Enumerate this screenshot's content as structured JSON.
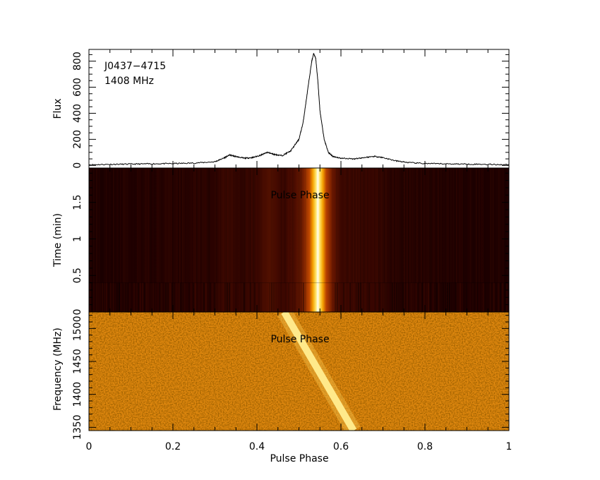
{
  "chart_data": [
    {
      "type": "line",
      "panel": "profile",
      "annotations": [
        "J0437−4715",
        "1408 MHz"
      ],
      "xlabel": "",
      "ylabel": "Flux",
      "xlim": [
        0,
        1
      ],
      "ylim": [
        -20,
        890
      ],
      "yticks": [
        "0",
        "200",
        "400",
        "600",
        "800"
      ],
      "x": [
        0.0,
        0.05,
        0.1,
        0.15,
        0.2,
        0.25,
        0.3,
        0.32,
        0.335,
        0.35,
        0.37,
        0.39,
        0.41,
        0.425,
        0.44,
        0.46,
        0.48,
        0.5,
        0.51,
        0.52,
        0.53,
        0.535,
        0.54,
        0.545,
        0.55,
        0.56,
        0.57,
        0.58,
        0.6,
        0.63,
        0.65,
        0.68,
        0.7,
        0.73,
        0.76,
        0.8,
        0.85,
        0.9,
        0.95,
        1.0
      ],
      "y": [
        5,
        8,
        10,
        12,
        14,
        18,
        28,
        55,
        80,
        68,
        55,
        60,
        80,
        100,
        85,
        75,
        110,
        200,
        330,
        560,
        790,
        860,
        820,
        650,
        420,
        200,
        100,
        70,
        55,
        50,
        58,
        70,
        60,
        35,
        22,
        14,
        12,
        10,
        8,
        5
      ]
    },
    {
      "type": "heatmap",
      "panel": "time-phase",
      "annotation": "Pulse Phase",
      "xlabel": "",
      "ylabel": "Time (min)",
      "xlim": [
        0,
        1
      ],
      "ylim": [
        0,
        1.97
      ],
      "yticks": [
        "0",
        "0.5",
        "1",
        "1.5"
      ],
      "pulse_center_phase": 0.545,
      "colormap": [
        "#1a0000",
        "#5a1000",
        "#b03b00",
        "#f08a00",
        "#ffe040",
        "#fffff0"
      ]
    },
    {
      "type": "heatmap",
      "panel": "frequency-phase",
      "annotation": "Pulse Phase",
      "xlabel": "Pulse Phase",
      "ylabel": "Frequency (MHz)",
      "xlim": [
        0,
        1
      ],
      "ylim": [
        1345,
        1525
      ],
      "xticks": [
        "0",
        "0.2",
        "0.4",
        "0.6",
        "0.8",
        "1"
      ],
      "yticks": [
        "1350",
        "1400",
        "1450",
        "1500"
      ],
      "dispersed_track": [
        {
          "frequency": 1525,
          "phase": 0.465
        },
        {
          "frequency": 1345,
          "phase": 0.63
        }
      ],
      "colormap": [
        "#d86a00",
        "#e38a10",
        "#f6cf50",
        "#ffe87a"
      ]
    }
  ]
}
